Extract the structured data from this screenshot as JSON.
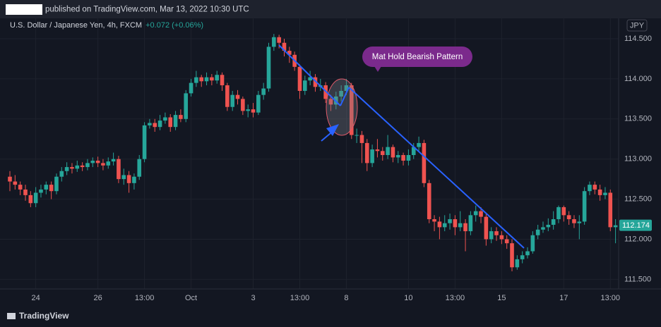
{
  "header": "published on TradingView.com, Mar 13, 2022 10:30 UTC",
  "footer": "TradingView",
  "chart_data": {
    "type": "candlestick",
    "symbol": "U.S. Dollar / Japanese Yen, 4h, FXCM",
    "change": "+0.072 (+0.06%)",
    "currency": "JPY",
    "annotation": "Mat Hold Bearish Pattern",
    "up_color": "#26a69a",
    "down_color": "#ef5350",
    "grid": true,
    "ylim": [
      111.38,
      114.72
    ],
    "yticks": [
      {
        "value": 114.5,
        "label": "114.500"
      },
      {
        "value": 114,
        "label": "114.000"
      },
      {
        "value": 113.5,
        "label": "113.500"
      },
      {
        "value": 113,
        "label": "113.000"
      },
      {
        "value": 112.5,
        "label": "112.500"
      },
      {
        "value": 112,
        "label": "112.000"
      },
      {
        "value": 111.5,
        "label": "111.500"
      }
    ],
    "categories": [
      null,
      null,
      null,
      null,
      null,
      "24",
      null,
      null,
      null,
      null,
      null,
      null,
      null,
      null,
      null,
      null,
      null,
      "26",
      null,
      null,
      null,
      null,
      null,
      null,
      null,
      null,
      "13:00",
      null,
      null,
      null,
      null,
      null,
      null,
      null,
      null,
      "Oct",
      null,
      null,
      null,
      null,
      null,
      null,
      null,
      null,
      null,
      null,
      null,
      "3",
      null,
      null,
      null,
      null,
      null,
      null,
      null,
      null,
      "13:00",
      null,
      null,
      null,
      null,
      null,
      null,
      null,
      null,
      "8",
      null,
      null,
      null,
      null,
      null,
      null,
      null,
      null,
      null,
      null,
      null,
      "10",
      null,
      null,
      null,
      null,
      null,
      null,
      null,
      null,
      "13:00",
      null,
      null,
      null,
      null,
      null,
      null,
      null,
      null,
      "15",
      null,
      null,
      null,
      null,
      null,
      null,
      null,
      null,
      null,
      null,
      null,
      "17",
      null,
      null,
      null,
      null,
      null,
      null,
      null,
      null,
      "13:00",
      null
    ],
    "open": [
      112.78,
      112.72,
      112.68,
      112.62,
      112.55,
      112.45,
      112.58,
      112.62,
      112.68,
      112.6,
      112.78,
      112.85,
      112.9,
      112.88,
      112.92,
      112.9,
      112.95,
      112.98,
      112.95,
      112.92,
      112.97,
      113.0,
      112.75,
      112.8,
      112.7,
      112.78,
      113.0,
      113.42,
      113.45,
      113.4,
      113.48,
      113.52,
      113.4,
      113.55,
      113.5,
      113.82,
      113.95,
      114.02,
      113.97,
      114.02,
      113.98,
      114.05,
      113.92,
      113.65,
      113.8,
      113.75,
      113.6,
      113.62,
      113.58,
      113.8,
      113.88,
      114.4,
      114.52,
      114.45,
      114.35,
      114.3,
      114.15,
      113.85,
      113.98,
      114.02,
      113.9,
      113.92,
      113.75,
      113.68,
      113.78,
      113.85,
      113.92,
      113.3,
      113.3,
      113.2,
      112.95,
      113.12,
      113.1,
      113.05,
      113.15,
      113.02,
      113.05,
      112.98,
      113.05,
      113.15,
      113.2,
      112.7,
      112.25,
      112.22,
      112.15,
      112.2,
      112.25,
      112.15,
      112.2,
      112.1,
      112.3,
      112.35,
      112.28,
      112.0,
      112.1,
      112.05,
      112.0,
      111.95,
      111.65,
      111.75,
      111.8,
      111.85,
      112.05,
      112.12,
      112.15,
      112.18,
      112.25,
      112.4,
      112.3,
      112.25,
      112.2,
      112.22,
      112.6,
      112.68,
      112.62,
      112.55,
      112.58,
      112.15
    ],
    "high": [
      112.85,
      112.8,
      112.72,
      112.68,
      112.6,
      112.65,
      112.68,
      112.72,
      112.72,
      112.82,
      112.9,
      112.96,
      112.95,
      112.98,
      112.96,
      113.0,
      113.02,
      113.03,
      113.0,
      113.02,
      113.08,
      113.04,
      112.88,
      112.85,
      112.82,
      113.05,
      113.46,
      113.5,
      113.5,
      113.55,
      113.58,
      113.56,
      113.6,
      113.62,
      113.86,
      114.0,
      114.1,
      114.05,
      114.08,
      114.06,
      114.1,
      114.08,
      113.95,
      113.85,
      113.86,
      113.78,
      113.68,
      113.7,
      113.85,
      113.95,
      114.45,
      114.56,
      114.55,
      114.5,
      114.4,
      114.34,
      114.18,
      114.04,
      114.1,
      114.06,
      114.0,
      113.96,
      113.8,
      113.84,
      113.92,
      114.0,
      113.95,
      113.38,
      113.35,
      113.25,
      113.18,
      113.25,
      113.15,
      113.3,
      113.18,
      113.1,
      113.08,
      113.12,
      113.2,
      113.28,
      113.24,
      112.74,
      112.3,
      112.28,
      112.3,
      112.32,
      112.3,
      112.35,
      112.25,
      112.35,
      112.42,
      112.4,
      112.32,
      112.15,
      112.15,
      112.1,
      112.05,
      112.0,
      111.8,
      111.85,
      111.9,
      112.1,
      112.18,
      112.22,
      112.26,
      112.35,
      112.42,
      112.42,
      112.35,
      112.3,
      112.3,
      112.65,
      112.72,
      112.72,
      112.68,
      112.65,
      112.62,
      112.25
    ],
    "low": [
      112.6,
      112.62,
      112.55,
      112.48,
      112.4,
      112.4,
      112.52,
      112.56,
      112.5,
      112.56,
      112.72,
      112.8,
      112.82,
      112.84,
      112.85,
      112.86,
      112.9,
      112.9,
      112.86,
      112.88,
      112.92,
      112.7,
      112.68,
      112.58,
      112.62,
      112.74,
      112.96,
      113.38,
      113.34,
      113.36,
      113.44,
      113.34,
      113.36,
      113.46,
      113.46,
      113.78,
      113.9,
      113.9,
      113.92,
      113.92,
      113.94,
      113.85,
      113.6,
      113.6,
      113.68,
      113.55,
      113.52,
      113.52,
      113.55,
      113.74,
      113.84,
      114.35,
      114.38,
      114.28,
      114.2,
      114.1,
      113.75,
      113.8,
      113.92,
      113.84,
      113.85,
      113.7,
      113.6,
      113.62,
      113.72,
      113.8,
      113.25,
      113.2,
      112.95,
      112.85,
      112.9,
      113.02,
      112.98,
      113.0,
      112.96,
      112.95,
      112.92,
      112.92,
      113.0,
      113.1,
      112.65,
      112.2,
      112.1,
      112.0,
      112.1,
      112.12,
      112.05,
      112.1,
      111.85,
      112.05,
      112.22,
      112.2,
      111.92,
      111.95,
      111.98,
      111.94,
      111.88,
      111.6,
      111.62,
      111.7,
      111.76,
      111.82,
      112.0,
      112.08,
      112.1,
      112.12,
      112.2,
      112.22,
      112.18,
      112.14,
      112.0,
      112.18,
      112.55,
      112.56,
      112.48,
      112.5,
      112.1,
      111.95
    ],
    "close": [
      112.72,
      112.68,
      112.62,
      112.55,
      112.45,
      112.58,
      112.62,
      112.68,
      112.6,
      112.78,
      112.85,
      112.9,
      112.88,
      112.92,
      112.9,
      112.95,
      112.98,
      112.95,
      112.92,
      112.97,
      113.0,
      112.75,
      112.8,
      112.7,
      112.78,
      113.0,
      113.42,
      113.45,
      113.4,
      113.48,
      113.52,
      113.4,
      113.55,
      113.5,
      113.82,
      113.95,
      114.02,
      113.97,
      114.02,
      113.98,
      114.05,
      113.92,
      113.65,
      113.8,
      113.75,
      113.6,
      113.62,
      113.58,
      113.8,
      113.88,
      114.4,
      114.52,
      114.45,
      114.35,
      114.3,
      114.15,
      113.85,
      113.98,
      114.02,
      113.9,
      113.92,
      113.75,
      113.68,
      113.78,
      113.85,
      113.92,
      113.3,
      113.3,
      113.2,
      112.95,
      113.12,
      113.1,
      113.05,
      113.15,
      113.02,
      113.05,
      112.98,
      113.05,
      113.15,
      113.2,
      112.7,
      112.25,
      112.22,
      112.15,
      112.2,
      112.25,
      112.15,
      112.2,
      112.1,
      112.3,
      112.35,
      112.28,
      112.0,
      112.1,
      112.05,
      112.0,
      111.95,
      111.65,
      111.75,
      111.8,
      111.85,
      112.05,
      112.12,
      112.15,
      112.18,
      112.25,
      112.4,
      112.3,
      112.25,
      112.2,
      112.22,
      112.6,
      112.68,
      112.62,
      112.55,
      112.58,
      112.15,
      112.174
    ]
  }
}
